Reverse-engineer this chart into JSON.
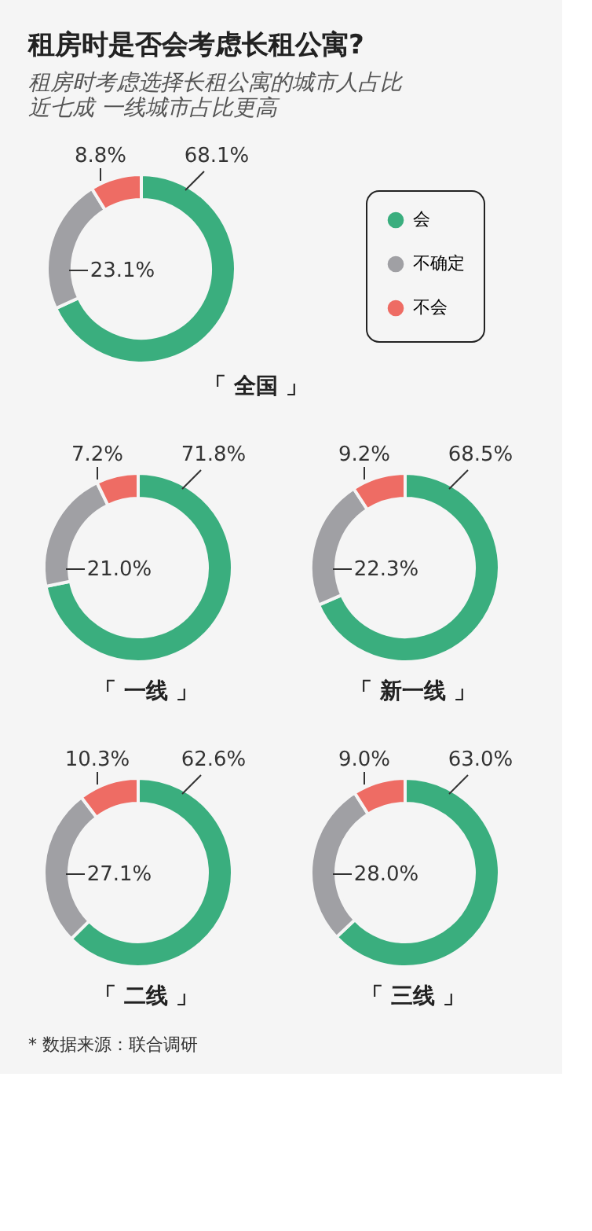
{
  "chart_data": [
    {
      "type": "donut",
      "title": "租房时是否会考虑长租公寓?",
      "subtitle": "租房时考虑选择长租公寓的城市人占比近七成 一线城市占比更高",
      "annotations": [
        "「 全国 」"
      ],
      "categories": [
        "会",
        "不确定",
        "不会"
      ],
      "values": [
        68.1,
        23.1,
        8.8
      ],
      "value_labels": [
        "68.1%",
        "23.1%",
        "8.8%"
      ],
      "colors": [
        "#3aae7e",
        "#a0a0a4",
        "#ee6c64"
      ],
      "legend": "right"
    },
    {
      "type": "donut",
      "title": "「 一线 」",
      "categories": [
        null,
        null,
        null
      ],
      "values": [
        71.8,
        21.0,
        7.2
      ],
      "value_labels": [
        "71.8%",
        "21.0%",
        "7.2%"
      ],
      "colors": [
        "#3aae7e",
        "#a0a0a4",
        "#ee6c64"
      ]
    },
    {
      "type": "donut",
      "title": "「 新一线 」",
      "categories": [
        null,
        null,
        null
      ],
      "values": [
        68.5,
        22.3,
        9.2
      ],
      "value_labels": [
        "68.5%",
        "22.3%",
        "9.2%"
      ],
      "colors": [
        "#3aae7e",
        "#a0a0a4",
        "#ee6c64"
      ]
    },
    {
      "type": "donut",
      "title": "「 二线 」",
      "categories": [
        null,
        null,
        null
      ],
      "values": [
        62.6,
        27.1,
        10.3
      ],
      "value_labels": [
        "62.6%",
        "27.1%",
        "10.3%"
      ],
      "colors": [
        "#3aae7e",
        "#a0a0a4",
        "#ee6c64"
      ]
    },
    {
      "type": "donut",
      "title": "「 三线 」",
      "categories": [
        null,
        null,
        null
      ],
      "values": [
        63.0,
        28.0,
        9.0
      ],
      "value_labels": [
        "63.0%",
        "28.0%",
        "9.0%"
      ],
      "colors": [
        "#3aae7e",
        "#a0a0a4",
        "#ee6c64"
      ],
      "annotations": [
        "* 数据来源：联合调研"
      ]
    }
  ]
}
